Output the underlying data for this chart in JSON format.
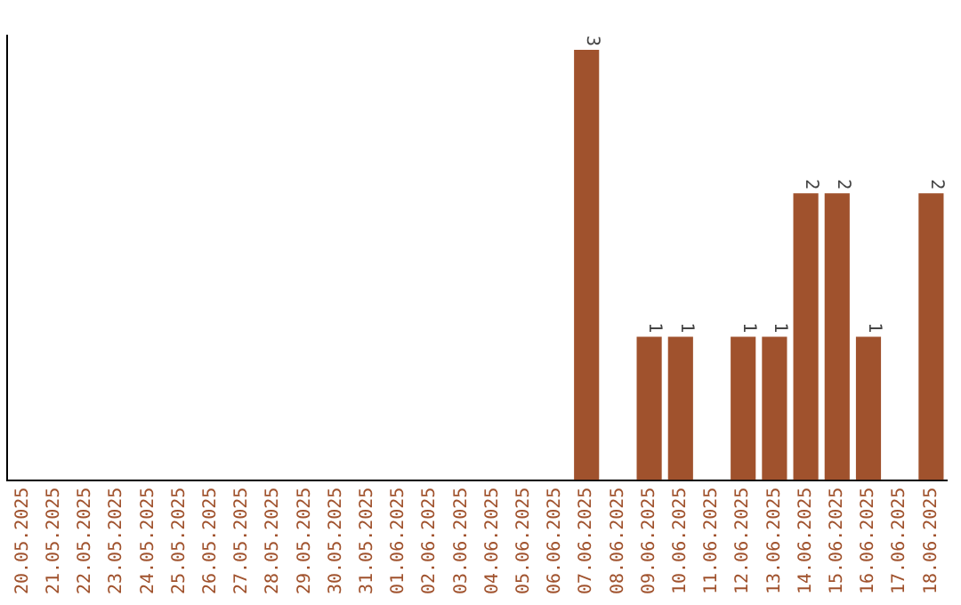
{
  "chart_data": {
    "type": "bar",
    "categories": [
      "20.05.2025",
      "21.05.2025",
      "22.05.2025",
      "23.05.2025",
      "24.05.2025",
      "25.05.2025",
      "26.05.2025",
      "27.05.2025",
      "28.05.2025",
      "29.05.2025",
      "30.05.2025",
      "31.05.2025",
      "01.06.2025",
      "02.06.2025",
      "03.06.2025",
      "04.06.2025",
      "05.06.2025",
      "06.06.2025",
      "07.06.2025",
      "08.06.2025",
      "09.06.2025",
      "10.06.2025",
      "11.06.2025",
      "12.06.2025",
      "13.06.2025",
      "14.06.2025",
      "15.06.2025",
      "16.06.2025",
      "17.06.2025",
      "18.06.2025"
    ],
    "values": [
      null,
      null,
      null,
      null,
      null,
      null,
      null,
      null,
      null,
      null,
      null,
      null,
      null,
      null,
      null,
      null,
      null,
      null,
      3,
      null,
      1,
      1,
      null,
      1,
      1,
      2,
      2,
      1,
      null,
      2
    ],
    "data_labels": true,
    "ylim": [
      0,
      3.1
    ],
    "color": "#a0522d",
    "tick_labels": "x",
    "grid": false,
    "legend": false
  }
}
